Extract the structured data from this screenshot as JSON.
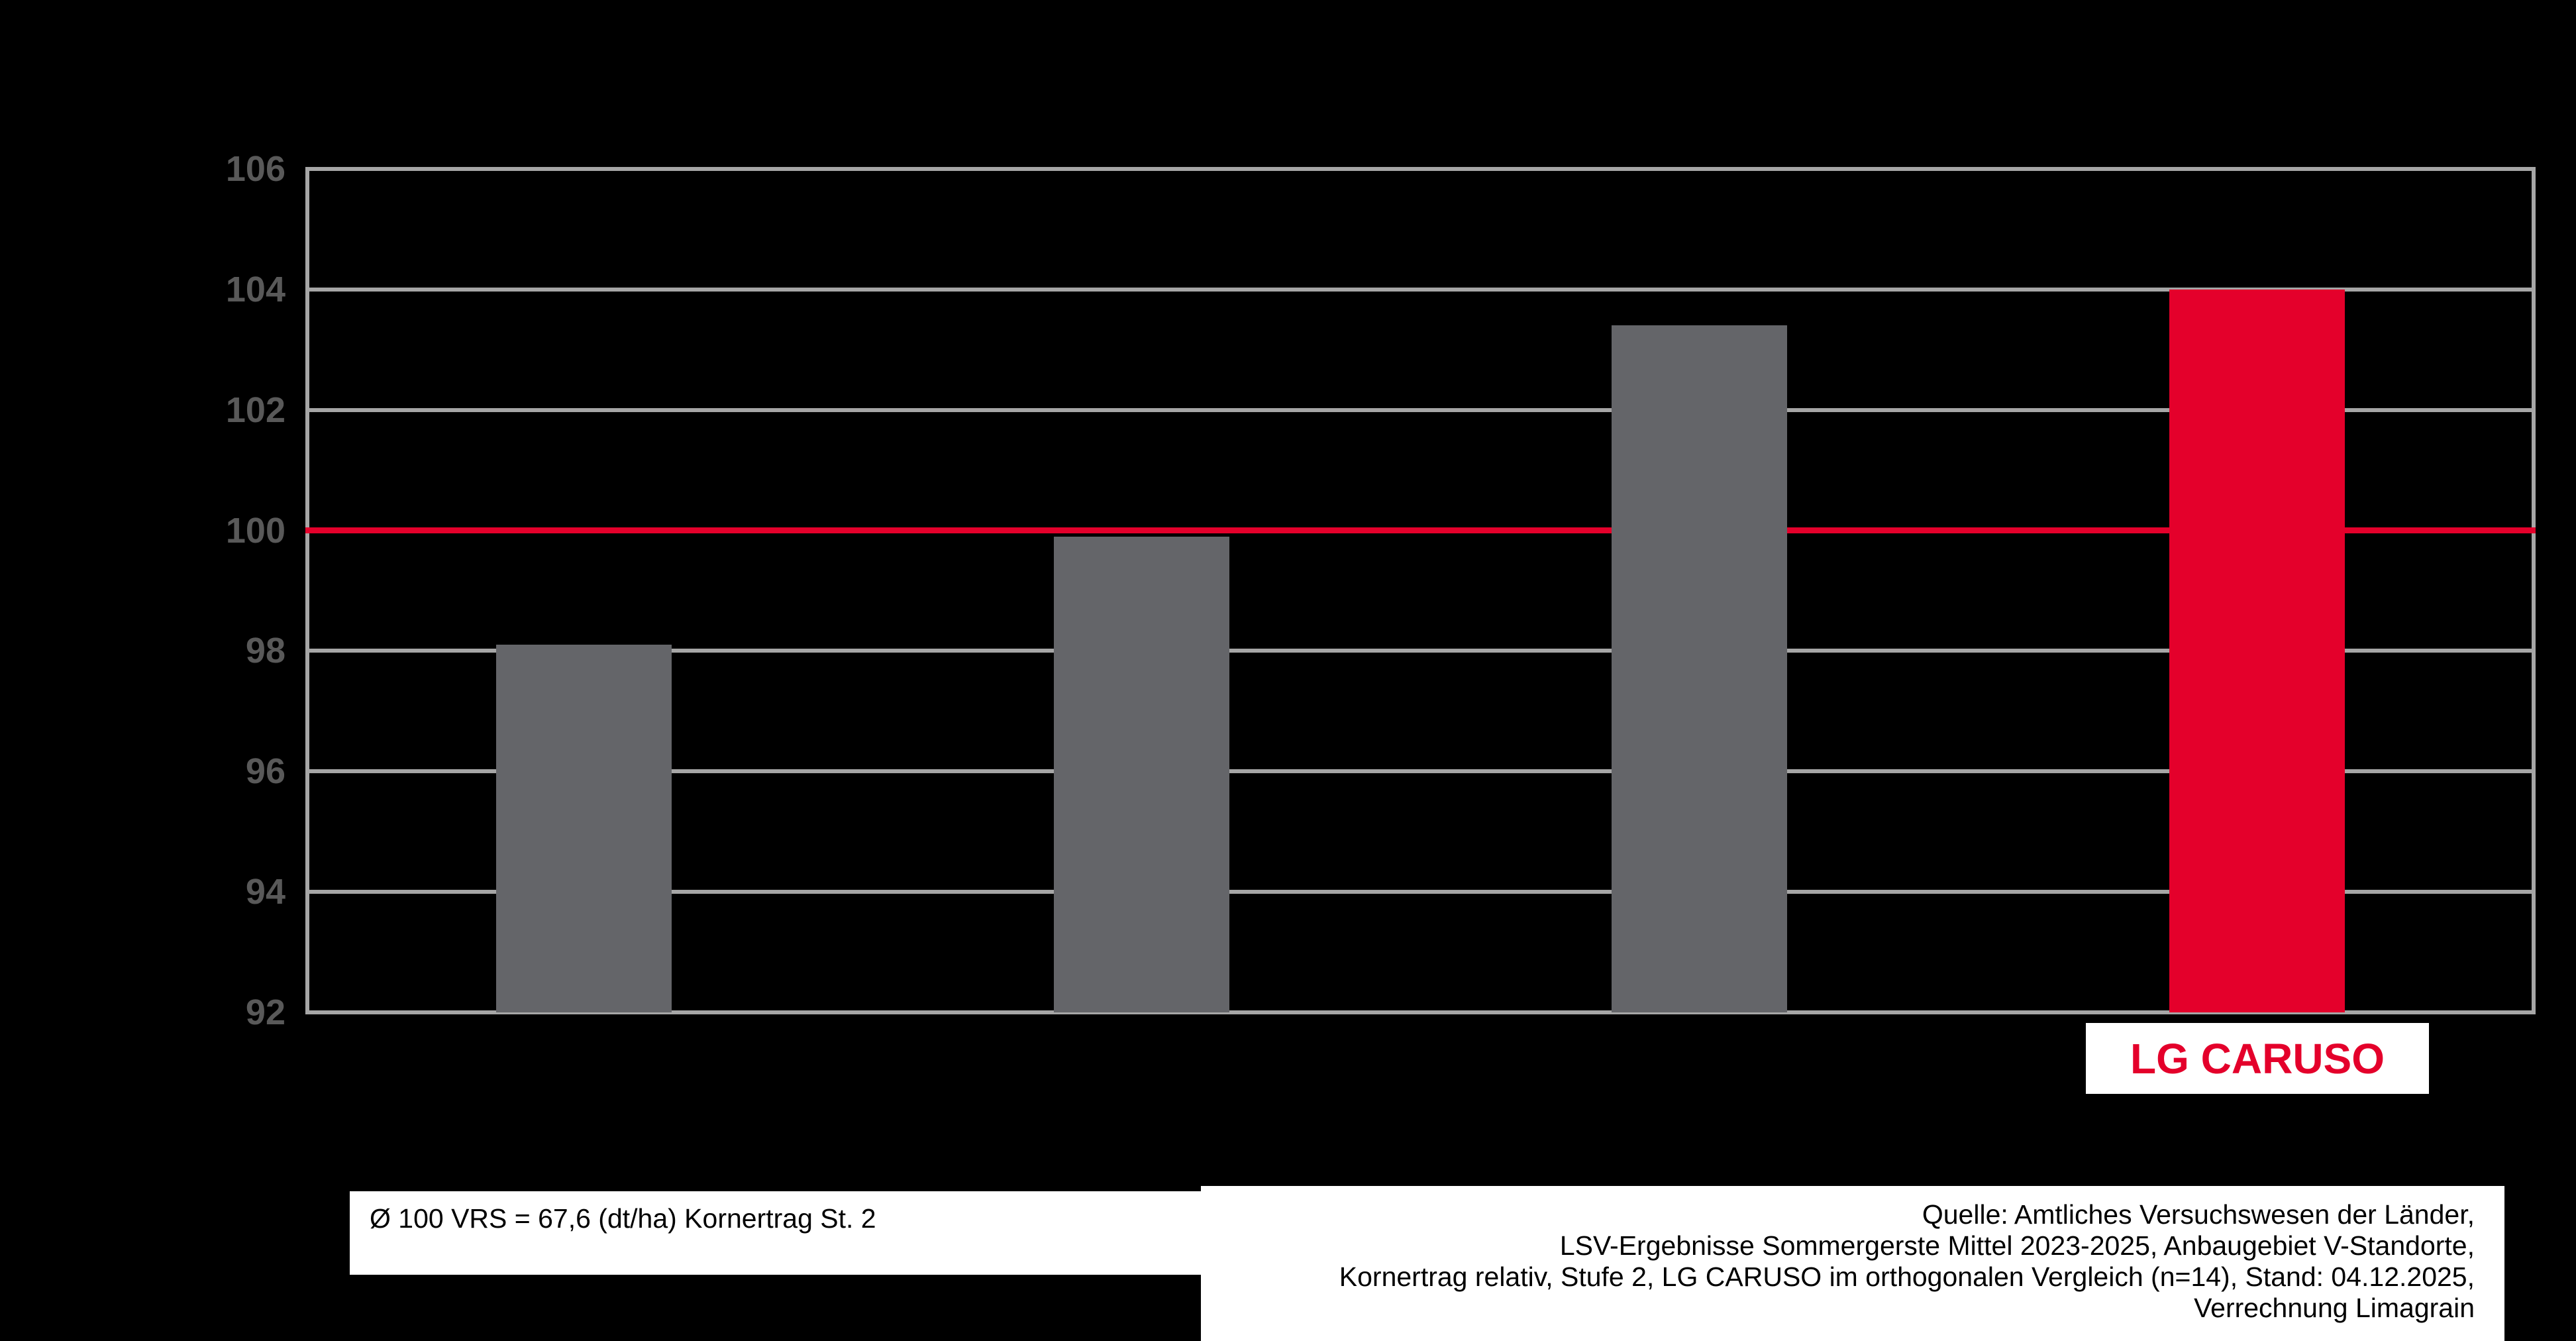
{
  "chart_data": {
    "type": "bar",
    "title": "",
    "categories": [
      "",
      "",
      "",
      "LG CARUSO"
    ],
    "values": [
      98.1,
      99.9,
      103.4,
      104.0
    ],
    "bar_colors": [
      "#646569",
      "#646569",
      "#646569",
      "#e4002b"
    ],
    "xlabel": "",
    "ylabel": "",
    "ylim": [
      92,
      106
    ],
    "yticks": [
      92,
      94,
      96,
      98,
      100,
      102,
      104,
      106
    ],
    "grid": true,
    "legend_position": "none",
    "reference_line": {
      "value": 100
    },
    "highlight": {
      "label": "LG CARUSO",
      "bar_index": 3
    }
  },
  "captions": {
    "baseline_note": "Ø 100 VRS = 67,6 (dt/ha) Kornertrag St. 2",
    "source_lines": [
      "Quelle: Amtliches Versuchswesen der Länder,",
      "LSV-Ergebnisse Sommergerste Mittel 2023-2025, Anbaugebiet V-Standorte,",
      "Kornertrag relativ, Stufe 2, LG CARUSO im orthogonalen Vergleich (n=14), Stand: 04.12.2025,",
      "Verrechnung Limagrain"
    ]
  },
  "colors": {
    "background": "#000000",
    "bar_default": "#646569",
    "bar_highlight": "#e4002b",
    "reference_line": "#e4002b",
    "gridline": "#a6a6a6",
    "tick_label": "#595959",
    "caption_text": "#000000",
    "caption_background": "#ffffff",
    "highlight_text": "#e4002b"
  }
}
